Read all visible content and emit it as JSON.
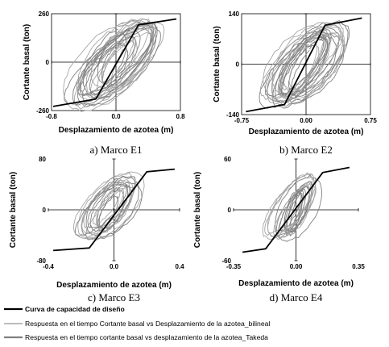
{
  "chart_data": [
    {
      "type": "line",
      "caption": "a) Marco E1",
      "xlabel": "Desplazamiento de azotea (m)",
      "ylabel": "Cortante basal (ton)",
      "xlim": [
        -0.8,
        0.8
      ],
      "ylim": [
        -260,
        260
      ],
      "xticks": [
        "-0.8",
        "0.0",
        "0.8"
      ],
      "yticks": [
        "260",
        "0",
        "-260"
      ],
      "frame": true,
      "capacity_curve": {
        "x": [
          -0.78,
          -0.25,
          0.28,
          0.75
        ],
        "y": [
          -238,
          -198,
          200,
          232
        ]
      },
      "hysteresis_amplitude": {
        "x": 0.58,
        "y": 228
      }
    },
    {
      "type": "line",
      "caption": "b) Marco E2",
      "xlabel": "Desplazamiento de azotea (m)",
      "ylabel": "Cortante basal (ton)",
      "xlim": [
        -0.75,
        0.75
      ],
      "ylim": [
        -140,
        140
      ],
      "xticks": [
        "-0.75",
        "0.00",
        "0.75"
      ],
      "yticks": [
        "140",
        "0",
        "-140"
      ],
      "frame": true,
      "capacity_curve": {
        "x": [
          -0.7,
          -0.25,
          0.22,
          0.65
        ],
        "y": [
          -132,
          -112,
          108,
          128
        ]
      },
      "hysteresis_amplitude": {
        "x": 0.52,
        "y": 122
      }
    },
    {
      "type": "line",
      "caption": "c) Marco E3",
      "xlabel": "Desplazamiento de azotea (m)",
      "ylabel": "Cortante basal (ton)",
      "xlim": [
        -0.4,
        0.4
      ],
      "ylim": [
        -80,
        80
      ],
      "xticks": [
        "-0.4",
        "0.0",
        "0.4"
      ],
      "yticks": [
        "80",
        "0",
        "-80"
      ],
      "frame": false,
      "capacity_curve": {
        "x": [
          -0.37,
          -0.15,
          0.2,
          0.37
        ],
        "y": [
          -64,
          -60,
          60,
          64
        ]
      },
      "hysteresis_amplitude": {
        "x": 0.22,
        "y": 52
      }
    },
    {
      "type": "line",
      "caption": "d) Marco E4",
      "xlabel": "Desplazamiento de azotea (m)",
      "ylabel": "Cortante basal (ton)",
      "xlim": [
        -0.35,
        0.35
      ],
      "ylim": [
        -60,
        60
      ],
      "xticks": [
        "-0.35",
        "0.00",
        "0.35"
      ],
      "yticks": [
        "60",
        "0",
        "-60"
      ],
      "frame": false,
      "capacity_curve": {
        "x": [
          -0.3,
          -0.17,
          0.15,
          0.3
        ],
        "y": [
          -50,
          -46,
          44,
          50
        ]
      },
      "hysteresis_amplitude": {
        "x": 0.16,
        "y": 42
      }
    }
  ],
  "legend": [
    {
      "label": "Curva de capacidad de diseño",
      "color": "#000000"
    },
    {
      "label": "Respuesta en el tiempo Cortante basal vs Desplazamiento de la azotea_bilineal",
      "color": "#a6a6a6"
    },
    {
      "label": "Respuesta en el tiempo cortante basal vs desplazamiento de la azotea_Takeda",
      "color": "#808080"
    }
  ],
  "colors": {
    "capacity": "#000000",
    "bilineal": "#a6a6a6",
    "takeda": "#808080"
  }
}
